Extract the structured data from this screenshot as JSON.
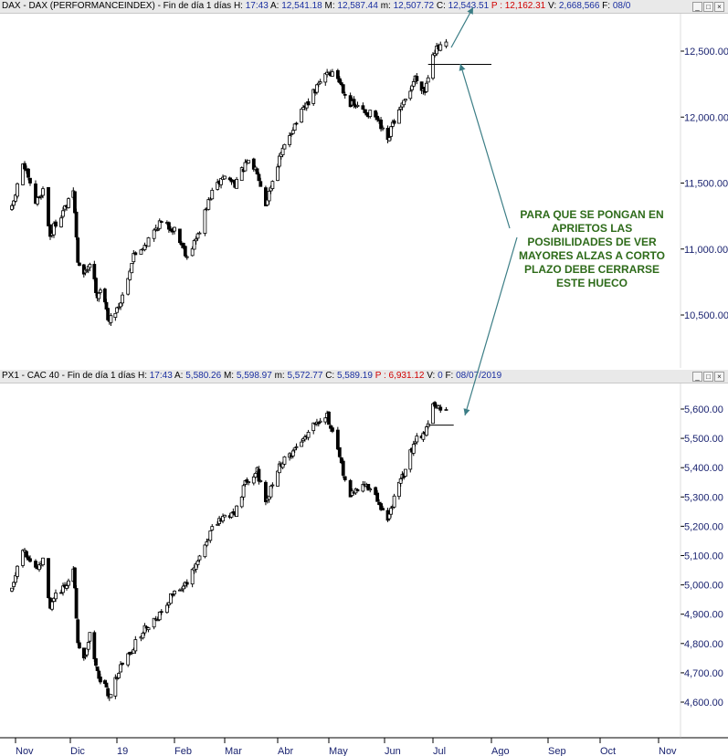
{
  "windows": [
    {
      "id": "dax",
      "header": {
        "title": "DAX - DAX (PERFORMANCEINDEX) - Fin de día 1 días",
        "h_label": "H:",
        "h_val": "17:43",
        "a_label": "A:",
        "a_val": "12,541.18",
        "m_label": "M:",
        "m_val": "12,587.44",
        "mn_label": "m:",
        "mn_val": "12,507.72",
        "c_label": "C:",
        "c_val": "12,543.51",
        "p_label": "P :",
        "p_val": "12,162.31",
        "v_label": "V:",
        "v_val": "2,668,566",
        "f_label": "F:",
        "f_val": "08/0"
      },
      "buttons": [
        "_",
        "□",
        "×"
      ]
    },
    {
      "id": "cac",
      "header": {
        "title": "PX1 - CAC 40 - Fin de día 1 días",
        "h_label": "H:",
        "h_val": "17:43",
        "a_label": "A:",
        "a_val": "5,580.26",
        "m_label": "M:",
        "m_val": "5,598.97",
        "mn_label": "m:",
        "mn_val": "5,572.77",
        "c_label": "C:",
        "c_val": "5,589.19",
        "p_label": "P :",
        "p_val": "6,931.12",
        "v_label": "V:",
        "v_val": "0",
        "f_label": "F:",
        "f_val": "08/07/2019"
      },
      "buttons": [
        "_",
        "□",
        "×"
      ]
    }
  ],
  "annotation": "PARA QUE SE PONGAN EN APRIETOS LAS POSIBILIDADES DE VER MAYORES ALZAS A CORTO PLAZO DEBE CERRARSE ESTE HUECO",
  "colors": {
    "candle": "#000000",
    "annotation": "#2e6b1a",
    "arrow": "#3b7d85",
    "axis_text": "#1a2370",
    "header_bg": "#e9e9e9",
    "header_red": "#d10000",
    "header_blue": "#1a2fa0"
  },
  "chart_data": [
    {
      "type": "candlestick",
      "title": "DAX - DAX (PERFORMANCEINDEX)",
      "x_tick_labels": [
        "Nov",
        "Dic",
        "19",
        "Feb",
        "Mar",
        "Abr",
        "May",
        "Jun",
        "Jul",
        "Ago",
        "Sep",
        "Oct",
        "Nov"
      ],
      "y_tick_labels": [
        "12,500.00",
        "12,000.00",
        "11,500.00",
        "11,000.00",
        "10,500.00"
      ],
      "y_ticks": [
        12500,
        12000,
        11500,
        11000,
        10500
      ],
      "ylim": [
        10250,
        12950
      ],
      "close_path": [
        [
          "2018-10-30",
          11300
        ],
        [
          "2018-11-05",
          11650
        ],
        [
          "2018-11-12",
          11350
        ],
        [
          "2018-11-16",
          11450
        ],
        [
          "2018-11-20",
          11100
        ],
        [
          "2018-11-23",
          11200
        ],
        [
          "2018-11-30",
          11350
        ],
        [
          "2018-12-03",
          11450
        ],
        [
          "2018-12-06",
          10900
        ],
        [
          "2018-12-10",
          10800
        ],
        [
          "2018-12-14",
          10900
        ],
        [
          "2018-12-19",
          10650
        ],
        [
          "2018-12-21",
          10700
        ],
        [
          "2018-12-27",
          10450
        ],
        [
          "2019-01-03",
          10600
        ],
        [
          "2019-01-10",
          10950
        ],
        [
          "2019-01-17",
          11050
        ],
        [
          "2019-01-24",
          11200
        ],
        [
          "2019-02-01",
          11150
        ],
        [
          "2019-02-08",
          10950
        ],
        [
          "2019-02-14",
          11100
        ],
        [
          "2019-02-21",
          11400
        ],
        [
          "2019-02-28",
          11550
        ],
        [
          "2019-03-07",
          11500
        ],
        [
          "2019-03-14",
          11650
        ],
        [
          "2019-03-20",
          11600
        ],
        [
          "2019-03-25",
          11350
        ],
        [
          "2019-04-01",
          11650
        ],
        [
          "2019-04-09",
          11900
        ],
        [
          "2019-04-16",
          12050
        ],
        [
          "2019-04-23",
          12200
        ],
        [
          "2019-04-30",
          12350
        ],
        [
          "2019-05-06",
          12300
        ],
        [
          "2019-05-13",
          12100
        ],
        [
          "2019-05-20",
          12050
        ],
        [
          "2019-05-27",
          12000
        ],
        [
          "2019-06-03",
          11800
        ],
        [
          "2019-06-06",
          11950
        ],
        [
          "2019-06-13",
          12100
        ],
        [
          "2019-06-20",
          12300
        ],
        [
          "2019-06-26",
          12200
        ],
        [
          "2019-07-01",
          12500
        ],
        [
          "2019-07-08",
          12543.51
        ]
      ],
      "gap_line": {
        "from": "2019-06-28",
        "to": "2019-08-01",
        "value": 12400
      }
    },
    {
      "type": "candlestick",
      "title": "PX1 - CAC 40",
      "x_tick_labels": [
        "Nov",
        "Dic",
        "19",
        "Feb",
        "Mar",
        "Abr",
        "May",
        "Jun",
        "Jul",
        "Ago",
        "Sep",
        "Oct",
        "Nov"
      ],
      "y_tick_labels": [
        "5,600.00",
        "5,500.00",
        "5,400.00",
        "5,300.00",
        "5,200.00",
        "5,100.00",
        "5,000.00",
        "4,900.00",
        "4,800.00",
        "4,700.00",
        "4,600.00"
      ],
      "y_ticks": [
        5600,
        5500,
        5400,
        5300,
        5200,
        5100,
        5000,
        4900,
        4800,
        4700,
        4600
      ],
      "ylim": [
        4520,
        5660
      ],
      "close_path": [
        [
          "2018-10-30",
          4980
        ],
        [
          "2018-11-05",
          5120
        ],
        [
          "2018-11-12",
          5050
        ],
        [
          "2018-11-16",
          5080
        ],
        [
          "2018-11-20",
          4930
        ],
        [
          "2018-11-23",
          4960
        ],
        [
          "2018-11-30",
          5000
        ],
        [
          "2018-12-03",
          5060
        ],
        [
          "2018-12-06",
          4810
        ],
        [
          "2018-12-10",
          4750
        ],
        [
          "2018-12-14",
          4830
        ],
        [
          "2018-12-19",
          4700
        ],
        [
          "2018-12-21",
          4680
        ],
        [
          "2018-12-27",
          4620
        ],
        [
          "2019-01-03",
          4720
        ],
        [
          "2019-01-10",
          4790
        ],
        [
          "2019-01-17",
          4860
        ],
        [
          "2019-01-24",
          4900
        ],
        [
          "2019-02-01",
          4980
        ],
        [
          "2019-02-08",
          5000
        ],
        [
          "2019-02-14",
          5080
        ],
        [
          "2019-02-21",
          5180
        ],
        [
          "2019-02-28",
          5230
        ],
        [
          "2019-03-07",
          5250
        ],
        [
          "2019-03-14",
          5360
        ],
        [
          "2019-03-20",
          5390
        ],
        [
          "2019-03-25",
          5270
        ],
        [
          "2019-04-01",
          5400
        ],
        [
          "2019-04-09",
          5450
        ],
        [
          "2019-04-16",
          5500
        ],
        [
          "2019-04-23",
          5560
        ],
        [
          "2019-04-30",
          5580
        ],
        [
          "2019-05-06",
          5450
        ],
        [
          "2019-05-13",
          5300
        ],
        [
          "2019-05-20",
          5350
        ],
        [
          "2019-05-27",
          5300
        ],
        [
          "2019-06-03",
          5220
        ],
        [
          "2019-06-06",
          5280
        ],
        [
          "2019-06-13",
          5380
        ],
        [
          "2019-06-20",
          5500
        ],
        [
          "2019-06-26",
          5520
        ],
        [
          "2019-07-01",
          5610
        ],
        [
          "2019-07-08",
          5589.19
        ]
      ],
      "gap_line": {
        "from": "2019-06-28",
        "to": "2019-07-12",
        "value": 5545
      }
    }
  ]
}
